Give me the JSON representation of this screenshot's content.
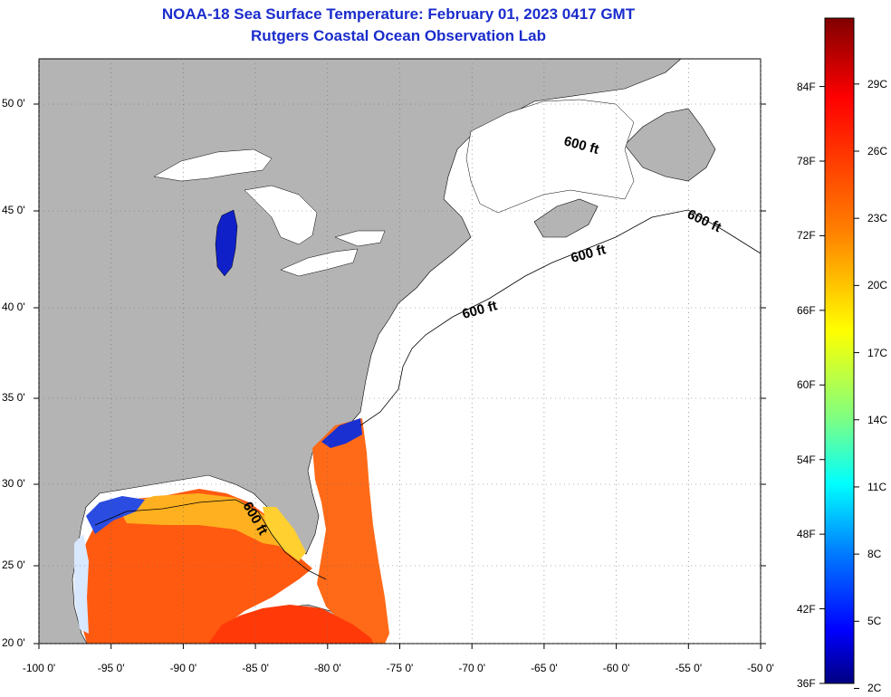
{
  "title": {
    "line1": "NOAA-18 Sea Surface Temperature:  February 01, 2023 0417 GMT",
    "line2": "Rutgers Coastal Ocean Observation Lab"
  },
  "map": {
    "lat_labels": [
      "50 0'",
      "45 0'",
      "40 0'",
      "35 0'",
      "30 0'",
      "25 0'",
      "20 0'"
    ],
    "lat_values": [
      50,
      45,
      40,
      35,
      30,
      25,
      20
    ],
    "lon_labels": [
      "-100 0'",
      "-95 0'",
      "-90 0'",
      "-85 0'",
      "-80 0'",
      "-75 0'",
      "-70 0'",
      "-65 0'",
      "-60 0'",
      "-55 0'",
      "-50 0'"
    ],
    "lon_values": [
      -100,
      -95,
      -90,
      -85,
      -80,
      -75,
      -70,
      -65,
      -60,
      -55,
      -50
    ],
    "contour_labels": [
      "600 ft",
      "600 ft",
      "600 ft",
      "600 ft",
      "600 ft"
    ],
    "colors": {
      "land": "#b4b4b4",
      "ocean_no_data": "#ffffff",
      "grid": "#666666"
    }
  },
  "colorbar": {
    "f_labels": [
      "84F",
      "78F",
      "72F",
      "66F",
      "60F",
      "54F",
      "48F",
      "42F",
      "36F"
    ],
    "c_labels": [
      "29C",
      "26C",
      "23C",
      "20C",
      "17C",
      "14C",
      "11C",
      "8C",
      "5C",
      "2C"
    ],
    "gradient": [
      "#800000",
      "#ff0000",
      "#ff8000",
      "#ffff00",
      "#80ff80",
      "#00ffff",
      "#0080ff",
      "#0000ff",
      "#000080"
    ]
  }
}
